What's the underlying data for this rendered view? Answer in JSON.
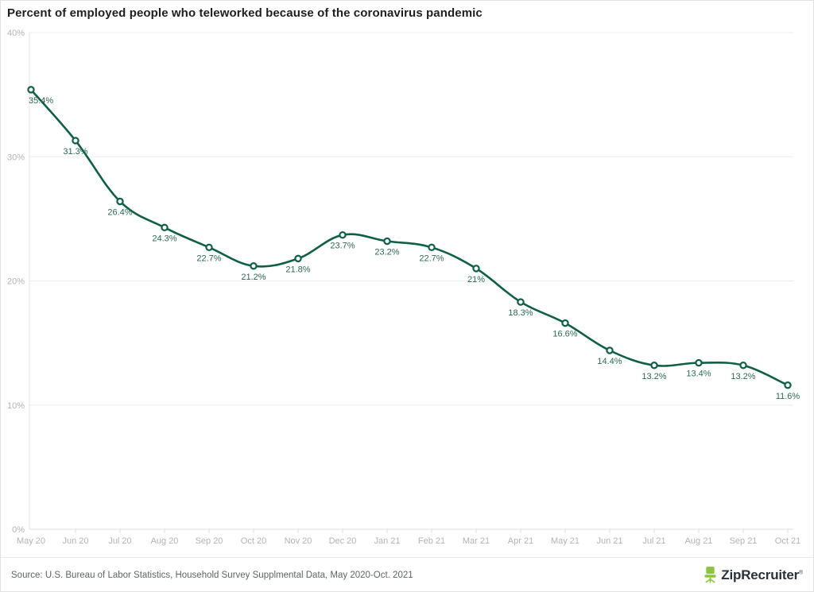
{
  "header": {
    "title": "Percent of employed people who teleworked because of the coronavirus pandemic"
  },
  "footer": {
    "source": "Source: U.S. Bureau of Labor Statistics, Household Survey Supplmental Data, May 2020-Oct. 2021",
    "logo": {
      "text": "ZipRecruiter",
      "registered_mark": "®",
      "icon": "office-chair-icon"
    }
  },
  "colors": {
    "line": "#0f5f46",
    "marker_fill": "#ffffff",
    "data_label": "#2a6a52",
    "gridline": "#ededed",
    "baseline": "#e0e0e0",
    "axis_line": "#e3e3e3",
    "tick_mark": "#dcdcdc",
    "tick_label": "#b3b3b3",
    "logo_green": "#8bc53f",
    "logo_text": "#27323a"
  },
  "chart_data": {
    "type": "line",
    "title": "Percent of employed people who teleworked because of the coronavirus pandemic",
    "x": [
      "May 20",
      "Jun 20",
      "Jul 20",
      "Aug 20",
      "Sep 20",
      "Oct 20",
      "Nov 20",
      "Dec 20",
      "Jan 21",
      "Feb 21",
      "Mar 21",
      "Apr 21",
      "May 21",
      "Jun 21",
      "Jul 21",
      "Aug 21",
      "Sep 21",
      "Oct 21"
    ],
    "values": [
      35.4,
      31.3,
      26.4,
      24.3,
      22.7,
      21.2,
      21.8,
      23.7,
      23.2,
      22.7,
      21,
      18.3,
      16.6,
      14.4,
      13.2,
      13.4,
      13.2,
      11.6
    ],
    "point_labels": [
      "35.4%",
      "31.3%",
      "26.4%",
      "24.3%",
      "22.7%",
      "21.2%",
      "21.8%",
      "23.7%",
      "23.2%",
      "22.7%",
      "21%",
      "18.3%",
      "16.6%",
      "14.4%",
      "13.2%",
      "13.4%",
      "13.2%",
      "11.6%"
    ],
    "xlabel": "",
    "ylabel": "",
    "ylim": [
      0,
      40
    ],
    "ytick_values": [
      0,
      10,
      20,
      30,
      40
    ],
    "ytick_labels": [
      "0%",
      "10%",
      "20%",
      "30%",
      "40%"
    ],
    "grid": true,
    "legend": false,
    "smooth": true,
    "marker": "open-circle"
  }
}
